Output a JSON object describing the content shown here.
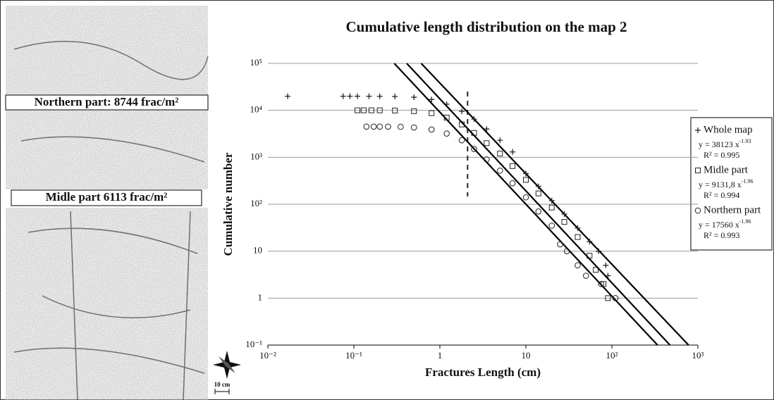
{
  "panels": [
    {
      "label": "Northern part: 8744 frac/m²"
    },
    {
      "label": "Midle part 6113 frac/m²"
    }
  ],
  "scale_label": "10 cm",
  "chart_data": {
    "type": "scatter",
    "title": "Cumulative length distribution on the map 2",
    "x_label": "Fractures Length (cm)",
    "y_label": "Cumulative number",
    "log_x": true,
    "log_y": true,
    "grid": true,
    "xlim": [
      0.01,
      1000
    ],
    "ylim": [
      0.1,
      100000
    ],
    "xticks": [
      {
        "value": 0.01,
        "label": "10⁻²"
      },
      {
        "value": 0.1,
        "label": "10⁻¹"
      },
      1,
      10,
      {
        "value": 100,
        "label": "10²"
      },
      {
        "value": 1000,
        "label": "10³"
      }
    ],
    "yticks": [
      {
        "value": 0.1,
        "label": "10⁻¹"
      },
      1,
      10,
      {
        "value": 100,
        "label": "10²"
      },
      {
        "value": 1000,
        "label": "10³"
      },
      {
        "value": 10000,
        "label": "10⁴"
      },
      {
        "value": 100000,
        "label": "10⁵"
      }
    ],
    "threshold_x": 2.1,
    "legend": "right",
    "series": [
      {
        "name": "Whole map",
        "marker": "plus",
        "color": "#222",
        "x": [
          0.017,
          0.075,
          0.09,
          0.11,
          0.15,
          0.2,
          0.3,
          0.5,
          0.8,
          1.2,
          1.8,
          2.5,
          3.5,
          5,
          7,
          10,
          14,
          20,
          28,
          40,
          55,
          70,
          85,
          90
        ],
        "values": [
          20000,
          20000,
          20000,
          20000,
          20000,
          19900,
          19700,
          19000,
          17000,
          13500,
          9500,
          6500,
          4000,
          2300,
          1300,
          450,
          240,
          120,
          62,
          31,
          16,
          10,
          5,
          3
        ],
        "fit": {
          "equation": "y = 38123 x",
          "exponent": "-1.93",
          "r2": "R² = 0.995",
          "coefficient": 38123,
          "power": -1.93
        }
      },
      {
        "name": "Midle part",
        "marker": "square",
        "color": "#222",
        "x": [
          0.11,
          0.13,
          0.16,
          0.2,
          0.3,
          0.5,
          0.8,
          1.2,
          1.8,
          2.5,
          3.5,
          5,
          7,
          10,
          14,
          20,
          28,
          40,
          55,
          65,
          80,
          90
        ],
        "values": [
          10000,
          10000,
          10000,
          10000,
          9900,
          9600,
          8700,
          7000,
          5000,
          3300,
          2000,
          1200,
          650,
          330,
          170,
          85,
          42,
          20,
          8,
          4,
          2,
          1
        ],
        "fit": {
          "equation": "y = 9131,8 x",
          "exponent": "-1.96",
          "r2": "R² = 0.994",
          "coefficient": {
            "value": 9131.8,
            "label": "9131,8"
          },
          "power": -1.96
        }
      },
      {
        "name": "Northern part",
        "marker": "circle",
        "color": "#222",
        "x": [
          0.14,
          0.17,
          0.2,
          0.25,
          0.35,
          0.5,
          0.8,
          1.2,
          1.8,
          2.5,
          3.5,
          5,
          7,
          10,
          14,
          20,
          25,
          30,
          40,
          50,
          75,
          110
        ],
        "values": [
          4500,
          4500,
          4500,
          4500,
          4450,
          4300,
          3900,
          3200,
          2300,
          1500,
          900,
          520,
          280,
          140,
          70,
          35,
          14,
          10,
          5,
          3,
          2,
          1
        ],
        "fit": {
          "equation": "y = 17560 x",
          "exponent": "-1.96",
          "r2": "R² = 0.993",
          "coefficient": 17560,
          "power": -1.96
        }
      }
    ]
  }
}
